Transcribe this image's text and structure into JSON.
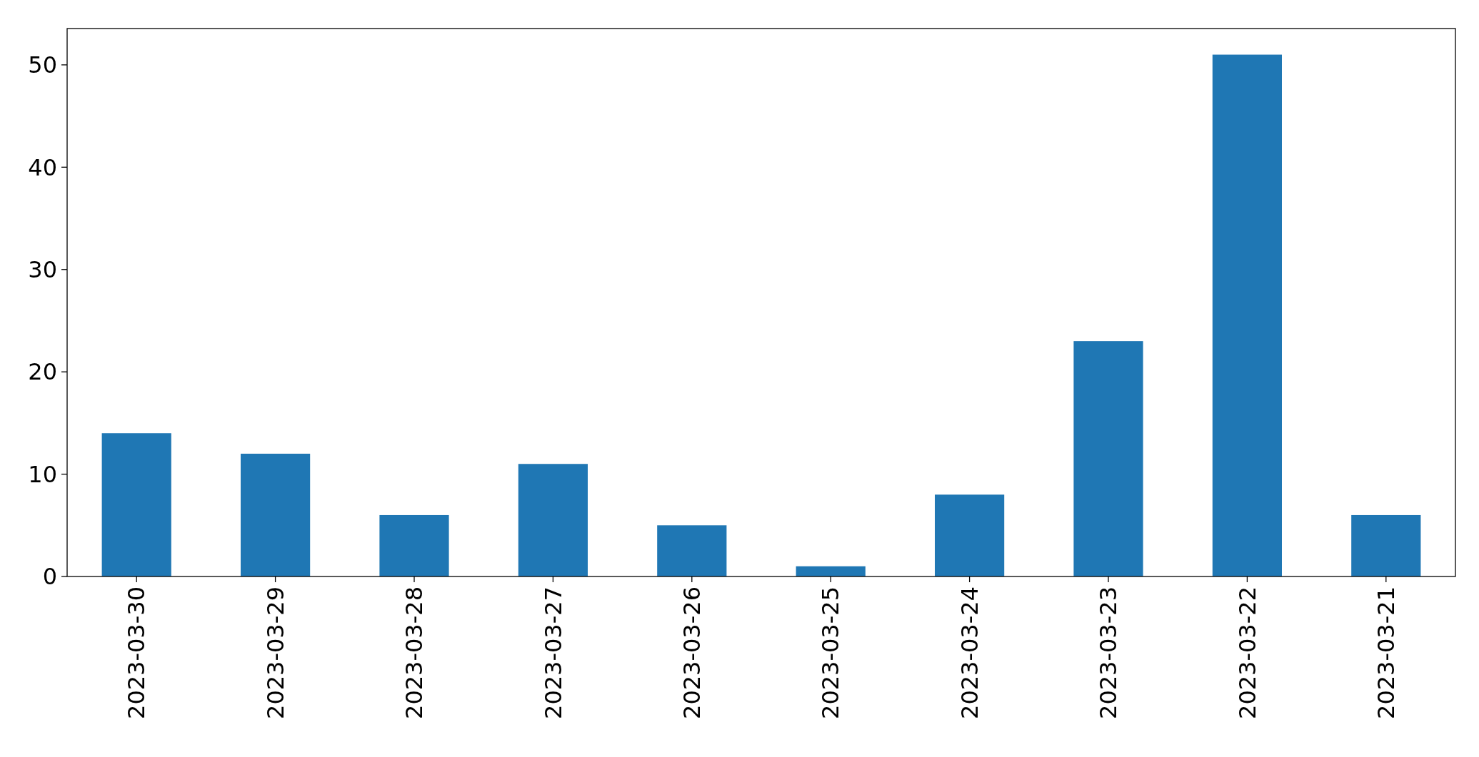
{
  "chart_data": {
    "type": "bar",
    "categories": [
      "2023-03-30",
      "2023-03-29",
      "2023-03-28",
      "2023-03-27",
      "2023-03-26",
      "2023-03-25",
      "2023-03-24",
      "2023-03-23",
      "2023-03-22",
      "2023-03-21"
    ],
    "values": [
      14,
      12,
      6,
      11,
      5,
      1,
      8,
      23,
      51,
      6
    ],
    "color": "#1f77b4",
    "ylim": [
      0,
      53.55
    ],
    "yticks": [
      0,
      10,
      20,
      30,
      40,
      50
    ],
    "grid": false
  }
}
